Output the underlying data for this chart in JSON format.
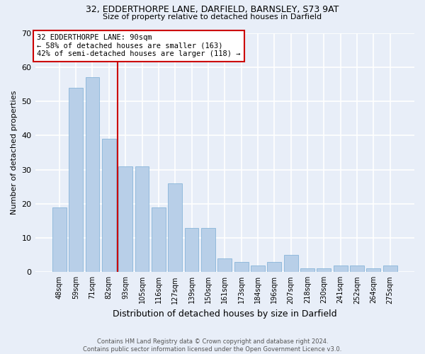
{
  "title_line1": "32, EDDERTHORPE LANE, DARFIELD, BARNSLEY, S73 9AT",
  "title_line2": "Size of property relative to detached houses in Darfield",
  "xlabel": "Distribution of detached houses by size in Darfield",
  "ylabel": "Number of detached properties",
  "footer_line1": "Contains HM Land Registry data © Crown copyright and database right 2024.",
  "footer_line2": "Contains public sector information licensed under the Open Government Licence v3.0.",
  "categories": [
    "48sqm",
    "59sqm",
    "71sqm",
    "82sqm",
    "93sqm",
    "105sqm",
    "116sqm",
    "127sqm",
    "139sqm",
    "150sqm",
    "161sqm",
    "173sqm",
    "184sqm",
    "196sqm",
    "207sqm",
    "218sqm",
    "230sqm",
    "241sqm",
    "252sqm",
    "264sqm",
    "275sqm"
  ],
  "values": [
    19,
    54,
    57,
    39,
    31,
    31,
    19,
    26,
    13,
    13,
    4,
    3,
    2,
    3,
    5,
    1,
    1,
    2,
    2,
    1,
    2
  ],
  "bar_color": "#b8cfe8",
  "bar_edge_color": "#7aadd4",
  "background_color": "#e8eef8",
  "grid_color": "#ffffff",
  "ylim": [
    0,
    70
  ],
  "yticks": [
    0,
    10,
    20,
    30,
    40,
    50,
    60,
    70
  ],
  "annotation_text": "32 EDDERTHORPE LANE: 90sqm\n← 58% of detached houses are smaller (163)\n42% of semi-detached houses are larger (118) →",
  "vline_x_index": 3.5,
  "annotation_box_color": "#ffffff",
  "annotation_box_edge": "#cc0000",
  "vline_color": "#cc0000"
}
